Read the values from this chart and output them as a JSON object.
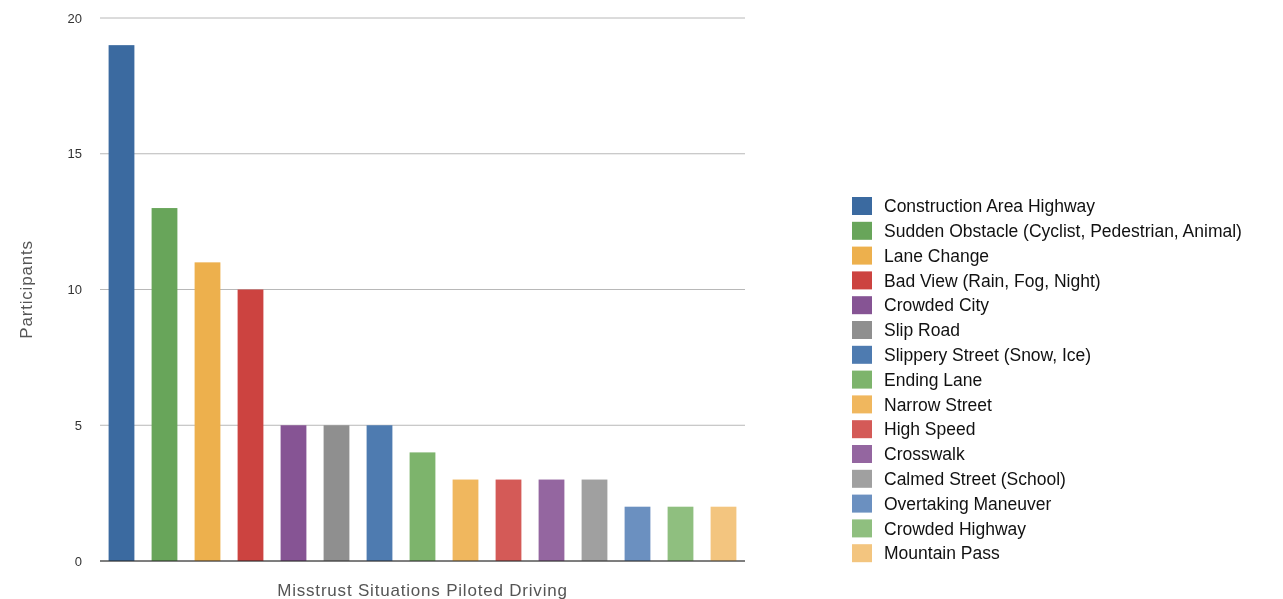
{
  "chart_data": {
    "type": "bar",
    "xlabel": "Misstrust Situations Piloted Driving",
    "ylabel": "Participants",
    "categories": [
      null,
      null,
      null,
      null,
      null,
      null,
      null,
      null,
      null,
      null,
      null,
      null,
      null,
      null,
      null
    ],
    "ylim": [
      0,
      20
    ],
    "yticks": [
      0,
      5,
      10,
      15,
      20
    ],
    "grid": "y",
    "legend": "right",
    "series": [
      {
        "name": "Construction Area Highway",
        "color": "#3b6aa0",
        "values": [
          19,
          null,
          null,
          null,
          null,
          null,
          null,
          null,
          null,
          null,
          null,
          null,
          null,
          null,
          null
        ]
      },
      {
        "name": "Sudden Obstacle (Cyclist, Pedestrian, Animal)",
        "color": "#68a55a",
        "values": [
          null,
          13,
          null,
          null,
          null,
          null,
          null,
          null,
          null,
          null,
          null,
          null,
          null,
          null,
          null
        ]
      },
      {
        "name": "Lane Change",
        "color": "#edb04d",
        "values": [
          null,
          null,
          11,
          null,
          null,
          null,
          null,
          null,
          null,
          null,
          null,
          null,
          null,
          null,
          null
        ]
      },
      {
        "name": "Bad View (Rain, Fog, Night)",
        "color": "#cc4340",
        "values": [
          null,
          null,
          null,
          10,
          null,
          null,
          null,
          null,
          null,
          null,
          null,
          null,
          null,
          null,
          null
        ]
      },
      {
        "name": "Crowded City",
        "color": "#865494",
        "values": [
          null,
          null,
          null,
          null,
          5,
          null,
          null,
          null,
          null,
          null,
          null,
          null,
          null,
          null,
          null
        ]
      },
      {
        "name": "Slip Road",
        "color": "#8f8f8f",
        "values": [
          null,
          null,
          null,
          null,
          null,
          5,
          null,
          null,
          null,
          null,
          null,
          null,
          null,
          null,
          null
        ]
      },
      {
        "name": "Slippery Street (Snow, Ice)",
        "color": "#4e7bb0",
        "values": [
          null,
          null,
          null,
          null,
          null,
          null,
          5,
          null,
          null,
          null,
          null,
          null,
          null,
          null,
          null
        ]
      },
      {
        "name": "Ending Lane",
        "color": "#7db46c",
        "values": [
          null,
          null,
          null,
          null,
          null,
          null,
          null,
          4,
          null,
          null,
          null,
          null,
          null,
          null,
          null
        ]
      },
      {
        "name": "Narrow Street",
        "color": "#f0b75e",
        "values": [
          null,
          null,
          null,
          null,
          null,
          null,
          null,
          null,
          3,
          null,
          null,
          null,
          null,
          null,
          null
        ]
      },
      {
        "name": "High Speed",
        "color": "#d45a57",
        "values": [
          null,
          null,
          null,
          null,
          null,
          null,
          null,
          null,
          null,
          3,
          null,
          null,
          null,
          null,
          null
        ]
      },
      {
        "name": "Crosswalk",
        "color": "#9466a0",
        "values": [
          null,
          null,
          null,
          null,
          null,
          null,
          null,
          null,
          null,
          null,
          3,
          null,
          null,
          null,
          null
        ]
      },
      {
        "name": "Calmed Street (School)",
        "color": "#a0a0a0",
        "values": [
          null,
          null,
          null,
          null,
          null,
          null,
          null,
          null,
          null,
          null,
          null,
          3,
          null,
          null,
          null
        ]
      },
      {
        "name": "Overtaking Maneuver",
        "color": "#6b90c0",
        "values": [
          null,
          null,
          null,
          null,
          null,
          null,
          null,
          null,
          null,
          null,
          null,
          null,
          2,
          null,
          null
        ]
      },
      {
        "name": "Crowded Highway",
        "color": "#8fbf7f",
        "values": [
          null,
          null,
          null,
          null,
          null,
          null,
          null,
          null,
          null,
          null,
          null,
          null,
          null,
          2,
          null
        ]
      },
      {
        "name": "Mountain Pass",
        "color": "#f3c57f",
        "values": [
          null,
          null,
          null,
          null,
          null,
          null,
          null,
          null,
          null,
          null,
          null,
          null,
          null,
          null,
          2
        ]
      }
    ]
  }
}
